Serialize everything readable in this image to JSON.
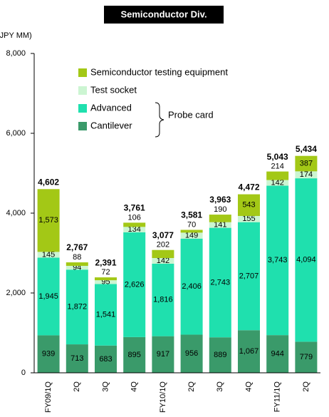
{
  "chart_data": {
    "type": "bar",
    "stacked": true,
    "title": "Semiconductor Div.",
    "y_axis_label": "(JPY MM)",
    "annotation": "Probe card",
    "categories": [
      "FY09/1Q",
      "2Q",
      "3Q",
      "4Q",
      "FY10/1Q",
      "2Q",
      "3Q",
      "4Q",
      "FY11/1Q",
      "2Q"
    ],
    "series": [
      {
        "name": "Cantilever",
        "color": "#3a9a6a",
        "values": [
          939,
          713,
          683,
          895,
          917,
          956,
          889,
          1067,
          944,
          779
        ],
        "value_labels": [
          "939",
          "713",
          "683",
          "895",
          "917",
          "956",
          "889",
          "1,067",
          "944",
          "779"
        ]
      },
      {
        "name": "Advanced",
        "color": "#1fe0ae",
        "values": [
          1945,
          1872,
          1541,
          2626,
          1816,
          2406,
          2743,
          2707,
          3743,
          4094
        ],
        "value_labels": [
          "1,945",
          "1,872",
          "1,541",
          "2,626",
          "1,816",
          "2,406",
          "2,743",
          "2,707",
          "3,743",
          "4,094"
        ]
      },
      {
        "name": "Test socket",
        "color": "#ccf5d2",
        "values": [
          145,
          94,
          95,
          134,
          142,
          149,
          141,
          155,
          142,
          174
        ],
        "value_labels": [
          "145",
          "94",
          "95",
          "134",
          "142",
          "149",
          "141",
          "155",
          "142",
          "174"
        ]
      },
      {
        "name": "Semiconductor testing equipment",
        "color": "#a3c816",
        "values": [
          1573,
          88,
          72,
          106,
          202,
          70,
          190,
          543,
          214,
          387
        ],
        "value_labels": [
          "1,573",
          "88",
          "72",
          "106",
          "202",
          "70",
          "190",
          "543",
          "214",
          "387"
        ]
      }
    ],
    "totals": [
      4602,
      2767,
      2391,
      3761,
      3077,
      3581,
      3963,
      4472,
      5043,
      5434
    ],
    "total_labels": [
      "4,602",
      "2,767",
      "2,391",
      "3,761",
      "3,077",
      "3,581",
      "3,963",
      "4,472",
      "5,043",
      "5,434"
    ],
    "ylim": [
      0,
      8000
    ],
    "yticks": [
      0,
      {
        "value": 2000,
        "label": "2,000"
      },
      {
        "value": 4000,
        "label": "4,000"
      },
      {
        "value": 6000,
        "label": "6,000"
      },
      {
        "value": 8000,
        "label": "8,000"
      }
    ]
  }
}
